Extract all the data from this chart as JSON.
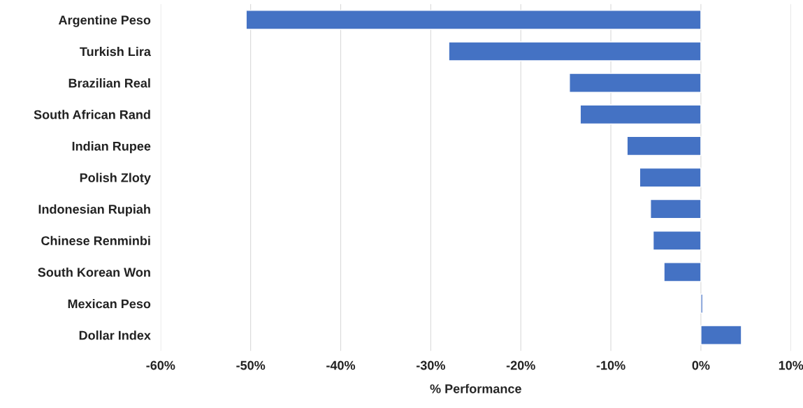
{
  "chart_data": {
    "type": "bar",
    "orientation": "horizontal",
    "xlabel": "% Performance",
    "categories": [
      "Argentine Peso",
      "Turkish Lira",
      "Brazilian Real",
      "South African Rand",
      "Indian Rupee",
      "Polish Zloty",
      "Indonesian Rupiah",
      "Chinese Renminbi",
      "South Korean Won",
      "Mexican Peso",
      "Dollar Index"
    ],
    "values": [
      -50.5,
      -28.0,
      -14.6,
      -13.4,
      -8.2,
      -6.8,
      -5.6,
      -5.3,
      -4.1,
      0.2,
      4.5
    ],
    "color": "#4472c4",
    "xlim": [
      -60,
      10
    ],
    "xticks": [
      {
        "value": -60,
        "label": "-60%"
      },
      {
        "value": -50,
        "label": "-50%"
      },
      {
        "value": -40,
        "label": "-40%"
      },
      {
        "value": -30,
        "label": "-30%"
      },
      {
        "value": -20,
        "label": "-20%"
      },
      {
        "value": -10,
        "label": "-10%"
      },
      {
        "value": 0,
        "label": "0%"
      },
      {
        "value": 10,
        "label": "10%"
      }
    ],
    "grid": "x"
  }
}
